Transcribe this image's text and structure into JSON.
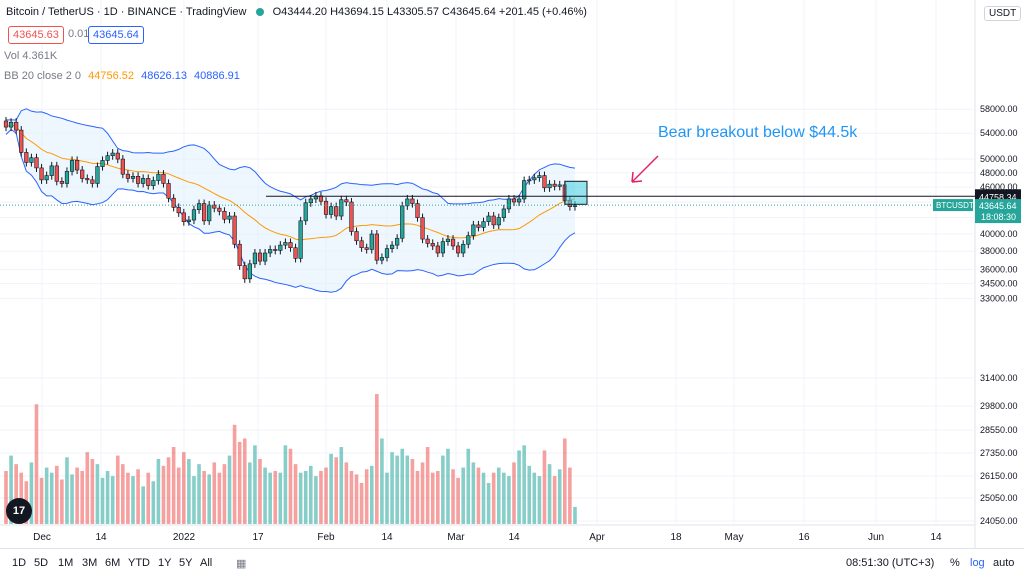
{
  "header": {
    "symbol_title": "Bitcoin / TetherUS · 1D · BINANCE · TradingView",
    "ohlc": "O43444.20 H43694.15 L43305.57 C43645.64 +201.45 (+0.46%)",
    "currency_button": "USDT"
  },
  "order_panel": {
    "sell_price": "43645.63",
    "spread": "0.01",
    "buy_price": "43645.64"
  },
  "indicators": {
    "volume_label": "Vol 4.361K",
    "bb_label": "BB 20 close 2 0",
    "bb_basis": "44756.52",
    "bb_upper": "48626.13",
    "bb_lower": "40886.91"
  },
  "annotation": "Bear breakout below $44.5k",
  "chart_data": {
    "type": "candlestick",
    "symbol": "BTCUSDT",
    "price_axis_ticks": [
      58000,
      54000,
      50000,
      48000,
      46000,
      44000,
      42000,
      40000,
      38000,
      36000,
      34500,
      33000,
      31400,
      29800,
      28550,
      27350,
      26150,
      25050,
      24050
    ],
    "price_axis_labels": [
      "58000.00",
      "54000.00",
      "50000.00",
      "48000.00",
      "46000.00",
      "44000.00",
      "42000.00",
      "40000.00",
      "38000.00",
      "36000.00",
      "34500.00",
      "33000.00",
      "31400.00",
      "29800.00",
      "28550.00",
      "27350.00",
      "26150.00",
      "25050.00",
      "24050.00"
    ],
    "time_axis_labels": [
      "Dec",
      "14",
      "2022",
      "17",
      "Feb",
      "14",
      "Mar",
      "14",
      "Apr",
      "18",
      "May",
      "16",
      "Jun",
      "14"
    ],
    "horizontal_line": 44758.34,
    "horizontal_line_label": "44758.34",
    "last_price_label": "43645.64",
    "last_price_symbol": "BTCUSDT",
    "countdown": "18:08:30",
    "closes": [
      55000,
      55800,
      54500,
      51000,
      49500,
      50200,
      48700,
      47000,
      47600,
      49000,
      46800,
      46500,
      48200,
      49800,
      48400,
      47200,
      47000,
      46500,
      48900,
      49800,
      50500,
      50900,
      50000,
      47800,
      47200,
      47500,
      46500,
      47200,
      46200,
      46900,
      47800,
      46500,
      44500,
      43300,
      42600,
      41500,
      41700,
      43000,
      43800,
      41600,
      43600,
      43200,
      42800,
      41800,
      42200,
      38800,
      36400,
      35000,
      36600,
      37800,
      36900,
      37800,
      38200,
      38100,
      38700,
      39000,
      38400,
      37200,
      41600,
      43900,
      44400,
      44800,
      44100,
      42400,
      43400,
      42200,
      44300,
      44000,
      40300,
      39200,
      38400,
      38200,
      40000,
      37000,
      37300,
      38300,
      38700,
      39500,
      43500,
      44400,
      43800,
      42000,
      39400,
      38900,
      38600,
      37800,
      39100,
      39400,
      38600,
      37800,
      38800,
      39800,
      41100,
      40800,
      41500,
      42200,
      41100,
      42000,
      43100,
      44400,
      44000,
      44400,
      46900,
      47000,
      47300,
      47600,
      45900,
      46400,
      46100,
      46300,
      44200,
      43400,
      43600
    ],
    "volume_values": [
      31,
      40,
      35,
      30,
      25,
      36,
      70,
      27,
      33,
      30,
      34,
      26,
      39,
      29,
      33,
      31,
      42,
      38,
      35,
      27,
      31,
      28,
      40,
      35,
      30,
      28,
      32,
      22,
      30,
      25,
      38,
      34,
      39,
      45,
      33,
      42,
      38,
      28,
      35,
      31,
      29,
      36,
      30,
      35,
      40,
      58,
      48,
      50,
      36,
      46,
      38,
      33,
      30,
      31,
      30,
      46,
      44,
      35,
      30,
      31,
      34,
      28,
      31,
      33,
      41,
      39,
      45,
      36,
      31,
      29,
      24,
      32,
      34,
      76,
      50,
      30,
      42,
      40,
      44,
      40,
      38,
      31,
      36,
      45,
      30,
      31,
      40,
      44,
      32,
      27,
      33,
      44,
      36,
      33,
      30,
      24,
      30,
      33,
      30,
      28,
      36,
      43,
      46,
      34,
      30,
      28,
      43,
      35,
      28,
      32,
      50,
      33,
      10
    ],
    "volume_colors_up": "#26a69a",
    "volume_colors_down": "#ef5350"
  },
  "toolbar": {
    "timeframes": [
      "1D",
      "5D",
      "1M",
      "3M",
      "6M",
      "YTD",
      "1Y",
      "5Y",
      "All"
    ],
    "clock": "08:51:30 (UTC+3)",
    "percent": "%",
    "log": "log",
    "auto": "auto"
  },
  "colors": {
    "up": "#26a69a",
    "down": "#ef5350",
    "bb_line": "#2962ff",
    "bb_fill": "#e3f2fd",
    "basis": "#ff9800",
    "annotation": "#2196f3",
    "arrow": "#e91e63"
  }
}
